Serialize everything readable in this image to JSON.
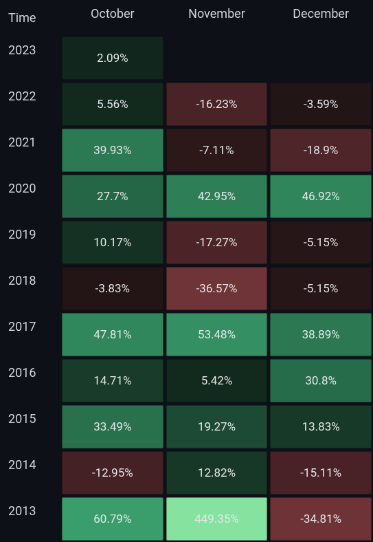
{
  "background_color": "#0d1117",
  "text_color": "#d1d5db",
  "cell_text_color": "#e5e7eb",
  "header_fontsize": 18,
  "cell_fontsize": 17,
  "scale": {
    "neg_base": "#1a1214",
    "neg_max": "#86e29f",
    "pos_base": "#11261c",
    "pos_max": "#5b2a2e"
  },
  "header": {
    "time": "Time",
    "cols": [
      "October",
      "November",
      "December"
    ]
  },
  "rows": [
    {
      "year": "2023",
      "cells": [
        {
          "value": "2.09%",
          "bg": "#11261c"
        },
        {
          "value": "",
          "bg": ""
        },
        {
          "value": "",
          "bg": ""
        }
      ]
    },
    {
      "year": "2022",
      "cells": [
        {
          "value": "5.56%",
          "bg": "#12291e"
        },
        {
          "value": "-16.23%",
          "bg": "#4a2326"
        },
        {
          "value": "-3.59%",
          "bg": "#221516"
        }
      ]
    },
    {
      "year": "2021",
      "cells": [
        {
          "value": "39.93%",
          "bg": "#2c7a53"
        },
        {
          "value": "-7.11%",
          "bg": "#2c1719"
        },
        {
          "value": "-18.9%",
          "bg": "#4e2528"
        }
      ]
    },
    {
      "year": "2020",
      "cells": [
        {
          "value": "27.7%",
          "bg": "#256646"
        },
        {
          "value": "42.95%",
          "bg": "#2e7f57"
        },
        {
          "value": "46.92%",
          "bg": "#30855b"
        }
      ]
    },
    {
      "year": "2019",
      "cells": [
        {
          "value": "10.17%",
          "bg": "#153123"
        },
        {
          "value": "-17.27%",
          "bg": "#4c2427"
        },
        {
          "value": "-5.15%",
          "bg": "#261617"
        }
      ]
    },
    {
      "year": "2018",
      "cells": [
        {
          "value": "-3.83%",
          "bg": "#231516"
        },
        {
          "value": "-36.57%",
          "bg": "#6f3438"
        },
        {
          "value": "-5.15%",
          "bg": "#261617"
        }
      ]
    },
    {
      "year": "2017",
      "cells": [
        {
          "value": "47.81%",
          "bg": "#31875c"
        },
        {
          "value": "53.48%",
          "bg": "#349062"
        },
        {
          "value": "38.89%",
          "bg": "#2b7852"
        }
      ]
    },
    {
      "year": "2016",
      "cells": [
        {
          "value": "14.71%",
          "bg": "#183b2a"
        },
        {
          "value": "5.42%",
          "bg": "#12291e"
        },
        {
          "value": "30.8%",
          "bg": "#276c4a"
        }
      ]
    },
    {
      "year": "2015",
      "cells": [
        {
          "value": "33.49%",
          "bg": "#29714d"
        },
        {
          "value": "19.27%",
          "bg": "#1c4a34"
        },
        {
          "value": "13.83%",
          "bg": "#173928"
        }
      ]
    },
    {
      "year": "2014",
      "cells": [
        {
          "value": "-12.95%",
          "bg": "#432124"
        },
        {
          "value": "12.82%",
          "bg": "#173727"
        },
        {
          "value": "-15.11%",
          "bg": "#482226"
        }
      ]
    },
    {
      "year": "2013",
      "cells": [
        {
          "value": "60.79%",
          "bg": "#3a9e6c"
        },
        {
          "value": "449.35%",
          "bg": "#86e29f"
        },
        {
          "value": "-34.81%",
          "bg": "#6d3337"
        }
      ]
    }
  ]
}
